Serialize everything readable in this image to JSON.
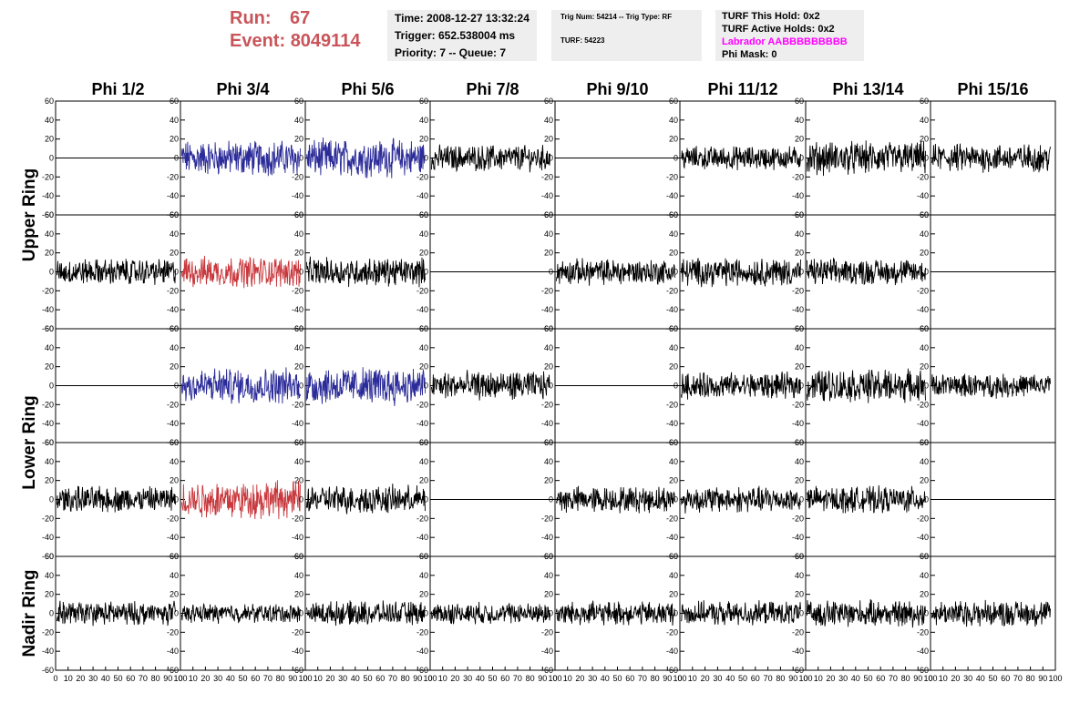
{
  "header": {
    "run_label": "Run:",
    "run_value": "67",
    "event_label": "Event:",
    "event_value": "8049114",
    "time": "Time: 2008-12-27 13:32:24",
    "trigger": "Trigger: 652.538004 ms",
    "priority": "Priority: 7 -- Queue: 7",
    "trig_num": "Trig Num: 54214 -- Trig Type: RF",
    "turf": "TURF: 54223",
    "turf_hold": "TURF This Hold: 0x2",
    "turf_active": "TURF Active Holds: 0x2",
    "labrador": "Labrador AABBBBBBBBB",
    "phi_mask": "Phi Mask: 0"
  },
  "colors": {
    "header_red": "#c9555a",
    "blue": "#2b2b99",
    "red": "#c8383d",
    "black": "#000000",
    "info_bg": "#eeeeee",
    "magenta": "#ff00ff"
  },
  "chart_data": {
    "type": "line",
    "columns": [
      "Phi 1/2",
      "Phi 3/4",
      "Phi 5/6",
      "Phi 7/8",
      "Phi 9/10",
      "Phi 11/12",
      "Phi 13/14",
      "Phi 15/16"
    ],
    "ring_labels": [
      "Upper Ring",
      "Lower Ring",
      "Nadir Ring"
    ],
    "xlim": [
      0,
      100
    ],
    "x_ticks": [
      "0",
      "10",
      "20",
      "30",
      "40",
      "50",
      "60",
      "70",
      "80",
      "90",
      "100"
    ],
    "ylim": [
      -60,
      60
    ],
    "y_ticks": [
      "60",
      "40",
      "20",
      "0",
      "-20",
      "-40",
      "-60"
    ],
    "samples_per_trace": 260,
    "panels": [
      [
        "flat",
        "blue",
        "blue",
        "black",
        "flat",
        "black",
        "black",
        "black"
      ],
      [
        "black",
        "red",
        "black",
        "flat",
        "black",
        "black",
        "black",
        "flat"
      ],
      [
        "flat",
        "blue",
        "blue",
        "black",
        "flat",
        "black",
        "black",
        "black"
      ],
      [
        "black",
        "red",
        "black",
        "flat",
        "black",
        "black",
        "black",
        "flat"
      ],
      [
        "black",
        "black",
        "black",
        "black",
        "black",
        "black",
        "black",
        "black"
      ]
    ],
    "amplitudes": [
      [
        0,
        15,
        16,
        11,
        0,
        10,
        14,
        12
      ],
      [
        11,
        13,
        12,
        0,
        11,
        12,
        11,
        0
      ],
      [
        0,
        15,
        16,
        12,
        0,
        11,
        14,
        10
      ],
      [
        11,
        16,
        12,
        0,
        11,
        11,
        11,
        0
      ],
      [
        10,
        8,
        10,
        9,
        10,
        10,
        11,
        11
      ]
    ]
  }
}
